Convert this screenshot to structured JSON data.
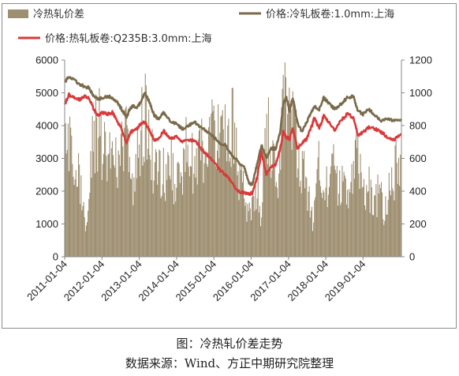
{
  "chart_data": {
    "type": "bar+line",
    "caption": "图：冷热轧价差走势",
    "source": "数据来源：Wind、方正中期研究院整理",
    "legend": {
      "placement": "top",
      "items": [
        {
          "label": "冷热轧价差",
          "kind": "area",
          "color": "#9e8f70"
        },
        {
          "label": "价格:冷轧板卷:1.0mm:上海",
          "kind": "line",
          "color": "#7a6a4a"
        },
        {
          "label": "价格:热轧板卷:Q235B:3.0mm:上海",
          "kind": "line",
          "color": "#d93a3a"
        }
      ]
    },
    "y_left": {
      "min": 0,
      "max": 6000,
      "ticks": [
        "0",
        "1000",
        "2000",
        "3000",
        "4000",
        "5000",
        "6000"
      ]
    },
    "y_right": {
      "min": 0,
      "max": 1200,
      "ticks": [
        "0",
        "200",
        "400",
        "600",
        "800",
        "1000",
        "1200"
      ]
    },
    "x": {
      "min": "2011-01-04",
      "max": "2020-01-15",
      "ticks": [
        "2011-01-04",
        "2012-01-04",
        "2013-01-04",
        "2014-01-04",
        "2015-01-04",
        "2016-01-04",
        "2017-01-04",
        "2018-01-04",
        "2019-01-04"
      ]
    },
    "grid": false,
    "series": [
      {
        "name": "价格:冷轧板卷:1.0mm:上海",
        "axis": "left",
        "points": [
          [
            "2011-01-04",
            5300
          ],
          [
            "2011-02-15",
            5500
          ],
          [
            "2011-04-01",
            5400
          ],
          [
            "2011-06-01",
            5250
          ],
          [
            "2011-07-15",
            5200
          ],
          [
            "2011-09-01",
            5150
          ],
          [
            "2011-10-15",
            4900
          ],
          [
            "2011-12-01",
            4800
          ],
          [
            "2012-01-04",
            4850
          ],
          [
            "2012-03-01",
            4900
          ],
          [
            "2012-04-15",
            4850
          ],
          [
            "2012-06-01",
            4700
          ],
          [
            "2012-07-15",
            4500
          ],
          [
            "2012-09-01",
            4250
          ],
          [
            "2012-10-01",
            4500
          ],
          [
            "2012-11-01",
            4600
          ],
          [
            "2012-12-15",
            4550
          ],
          [
            "2013-01-15",
            4700
          ],
          [
            "2013-03-01",
            5000
          ],
          [
            "2013-04-15",
            4700
          ],
          [
            "2013-06-01",
            4300
          ],
          [
            "2013-07-15",
            4200
          ],
          [
            "2013-09-01",
            4400
          ],
          [
            "2013-11-01",
            4150
          ],
          [
            "2014-01-04",
            4050
          ],
          [
            "2014-03-01",
            3900
          ],
          [
            "2014-05-01",
            4000
          ],
          [
            "2014-07-01",
            4100
          ],
          [
            "2014-09-01",
            3950
          ],
          [
            "2014-11-01",
            3800
          ],
          [
            "2015-01-04",
            3650
          ],
          [
            "2015-03-01",
            3450
          ],
          [
            "2015-05-01",
            3400
          ],
          [
            "2015-07-01",
            3100
          ],
          [
            "2015-09-01",
            2900
          ],
          [
            "2015-11-01",
            2700
          ],
          [
            "2015-12-15",
            2250
          ],
          [
            "2016-01-15",
            2200
          ],
          [
            "2016-03-01",
            2800
          ],
          [
            "2016-04-15",
            3400
          ],
          [
            "2016-06-01",
            3000
          ],
          [
            "2016-07-15",
            3300
          ],
          [
            "2016-09-01",
            3300
          ],
          [
            "2016-10-15",
            3800
          ],
          [
            "2016-11-15",
            4700
          ],
          [
            "2016-12-15",
            4850
          ],
          [
            "2017-01-15",
            4450
          ],
          [
            "2017-02-15",
            4850
          ],
          [
            "2017-04-01",
            4100
          ],
          [
            "2017-05-15",
            3800
          ],
          [
            "2017-07-01",
            4100
          ],
          [
            "2017-08-15",
            4400
          ],
          [
            "2017-09-15",
            4600
          ],
          [
            "2017-11-01",
            4500
          ],
          [
            "2017-12-15",
            4850
          ],
          [
            "2018-02-01",
            4700
          ],
          [
            "2018-04-01",
            4500
          ],
          [
            "2018-06-01",
            4650
          ],
          [
            "2018-08-01",
            4850
          ],
          [
            "2018-10-01",
            4900
          ],
          [
            "2018-11-15",
            4450
          ],
          [
            "2019-01-04",
            4350
          ],
          [
            "2019-03-01",
            4500
          ],
          [
            "2019-05-01",
            4300
          ],
          [
            "2019-07-01",
            4150
          ],
          [
            "2019-09-01",
            4200
          ],
          [
            "2019-11-01",
            4150
          ],
          [
            "2020-01-15",
            4200
          ]
        ]
      },
      {
        "name": "价格:热轧板卷:Q235B:3.0mm:上海",
        "axis": "left",
        "points": [
          [
            "2011-01-04",
            4650
          ],
          [
            "2011-02-15",
            4950
          ],
          [
            "2011-04-01",
            4850
          ],
          [
            "2011-06-01",
            4800
          ],
          [
            "2011-07-15",
            4900
          ],
          [
            "2011-09-01",
            4850
          ],
          [
            "2011-10-15",
            4500
          ],
          [
            "2011-12-01",
            4300
          ],
          [
            "2012-01-04",
            4400
          ],
          [
            "2012-03-01",
            4350
          ],
          [
            "2012-04-15",
            4400
          ],
          [
            "2012-06-01",
            4150
          ],
          [
            "2012-07-15",
            3900
          ],
          [
            "2012-09-01",
            3450
          ],
          [
            "2012-10-01",
            3750
          ],
          [
            "2012-11-01",
            3850
          ],
          [
            "2012-12-15",
            3900
          ],
          [
            "2013-01-15",
            4050
          ],
          [
            "2013-03-01",
            4100
          ],
          [
            "2013-04-15",
            3850
          ],
          [
            "2013-06-01",
            3550
          ],
          [
            "2013-07-15",
            3600
          ],
          [
            "2013-09-01",
            3850
          ],
          [
            "2013-11-01",
            3600
          ],
          [
            "2014-01-04",
            3650
          ],
          [
            "2014-03-01",
            3500
          ],
          [
            "2014-05-01",
            3550
          ],
          [
            "2014-07-01",
            3550
          ],
          [
            "2014-09-01",
            3300
          ],
          [
            "2014-11-01",
            3100
          ],
          [
            "2015-01-04",
            2900
          ],
          [
            "2015-03-01",
            2650
          ],
          [
            "2015-05-01",
            2500
          ],
          [
            "2015-07-01",
            2250
          ],
          [
            "2015-09-01",
            2000
          ],
          [
            "2015-11-01",
            1950
          ],
          [
            "2015-12-15",
            1900
          ],
          [
            "2016-01-15",
            1950
          ],
          [
            "2016-03-01",
            2400
          ],
          [
            "2016-04-15",
            3200
          ],
          [
            "2016-06-01",
            2500
          ],
          [
            "2016-07-15",
            2750
          ],
          [
            "2016-09-01",
            2800
          ],
          [
            "2016-10-15",
            3300
          ],
          [
            "2016-11-15",
            3800
          ],
          [
            "2016-12-15",
            3650
          ],
          [
            "2017-01-15",
            3600
          ],
          [
            "2017-02-15",
            3900
          ],
          [
            "2017-04-01",
            3300
          ],
          [
            "2017-05-15",
            3450
          ],
          [
            "2017-07-01",
            3600
          ],
          [
            "2017-08-15",
            3950
          ],
          [
            "2017-09-15",
            4250
          ],
          [
            "2017-11-01",
            3900
          ],
          [
            "2017-12-15",
            4300
          ],
          [
            "2018-02-01",
            4100
          ],
          [
            "2018-04-01",
            3850
          ],
          [
            "2018-06-01",
            4150
          ],
          [
            "2018-08-01",
            4350
          ],
          [
            "2018-10-01",
            4250
          ],
          [
            "2018-11-15",
            3700
          ],
          [
            "2019-01-04",
            3800
          ],
          [
            "2019-03-01",
            3950
          ],
          [
            "2019-05-01",
            3900
          ],
          [
            "2019-07-01",
            3800
          ],
          [
            "2019-09-01",
            3650
          ],
          [
            "2019-11-01",
            3550
          ],
          [
            "2020-01-15",
            3750
          ]
        ]
      },
      {
        "name": "冷热轧价差",
        "axis": "right",
        "kind": "area",
        "points": [
          [
            "2011-01-04",
            700
          ],
          [
            "2011-02-01",
            880
          ],
          [
            "2011-03-01",
            720
          ],
          [
            "2011-04-01",
            420
          ],
          [
            "2011-05-01",
            620
          ],
          [
            "2011-06-01",
            500
          ],
          [
            "2011-07-01",
            300
          ],
          [
            "2011-08-01",
            240
          ],
          [
            "2011-09-01",
            600
          ],
          [
            "2011-10-01",
            850
          ],
          [
            "2011-11-01",
            900
          ],
          [
            "2011-12-01",
            920
          ],
          [
            "2012-01-01",
            760
          ],
          [
            "2012-02-01",
            760
          ],
          [
            "2012-03-01",
            860
          ],
          [
            "2012-04-01",
            820
          ],
          [
            "2012-05-01",
            760
          ],
          [
            "2012-06-01",
            620
          ],
          [
            "2012-07-01",
            780
          ],
          [
            "2012-08-01",
            900
          ],
          [
            "2012-09-01",
            920
          ],
          [
            "2012-10-01",
            760
          ],
          [
            "2012-11-01",
            560
          ],
          [
            "2012-12-01",
            600
          ],
          [
            "2013-01-01",
            820
          ],
          [
            "2013-02-01",
            960
          ],
          [
            "2013-03-01",
            1060
          ],
          [
            "2013-04-01",
            820
          ],
          [
            "2013-05-01",
            720
          ],
          [
            "2013-06-01",
            620
          ],
          [
            "2013-07-01",
            720
          ],
          [
            "2013-08-01",
            640
          ],
          [
            "2013-09-01",
            560
          ],
          [
            "2013-10-01",
            660
          ],
          [
            "2013-11-01",
            680
          ],
          [
            "2013-12-01",
            560
          ],
          [
            "2014-01-01",
            560
          ],
          [
            "2014-02-01",
            520
          ],
          [
            "2014-03-01",
            640
          ],
          [
            "2014-04-01",
            820
          ],
          [
            "2014-05-01",
            740
          ],
          [
            "2014-06-01",
            660
          ],
          [
            "2014-07-01",
            680
          ],
          [
            "2014-08-01",
            720
          ],
          [
            "2014-09-01",
            900
          ],
          [
            "2014-10-01",
            700
          ],
          [
            "2014-11-01",
            680
          ],
          [
            "2014-12-01",
            880
          ],
          [
            "2015-01-01",
            820
          ],
          [
            "2015-02-01",
            880
          ],
          [
            "2015-03-01",
            860
          ],
          [
            "2015-04-01",
            800
          ],
          [
            "2015-05-01",
            880
          ],
          [
            "2015-06-01",
            880
          ],
          [
            "2015-07-01",
            960
          ],
          [
            "2015-08-01",
            760
          ],
          [
            "2015-09-01",
            600
          ],
          [
            "2015-10-01",
            480
          ],
          [
            "2015-11-01",
            500
          ],
          [
            "2015-12-01",
            300
          ],
          [
            "2016-01-01",
            380
          ],
          [
            "2016-02-01",
            360
          ],
          [
            "2016-03-01",
            500
          ],
          [
            "2016-04-01",
            240
          ],
          [
            "2016-05-01",
            700
          ],
          [
            "2016-06-01",
            1010
          ],
          [
            "2016-07-01",
            720
          ],
          [
            "2016-08-01",
            720
          ],
          [
            "2016-09-01",
            580
          ],
          [
            "2016-10-01",
            560
          ],
          [
            "2016-11-01",
            1040
          ],
          [
            "2016-12-01",
            1120
          ],
          [
            "2017-01-01",
            1000
          ],
          [
            "2017-02-01",
            940
          ],
          [
            "2017-03-01",
            880
          ],
          [
            "2017-04-01",
            700
          ],
          [
            "2017-05-01",
            520
          ],
          [
            "2017-06-01",
            640
          ],
          [
            "2017-07-01",
            500
          ],
          [
            "2017-08-01",
            340
          ],
          [
            "2017-09-01",
            260
          ],
          [
            "2017-10-01",
            560
          ],
          [
            "2017-11-01",
            660
          ],
          [
            "2017-12-01",
            420
          ],
          [
            "2018-01-01",
            480
          ],
          [
            "2018-02-01",
            560
          ],
          [
            "2018-03-01",
            620
          ],
          [
            "2018-04-01",
            580
          ],
          [
            "2018-05-01",
            480
          ],
          [
            "2018-06-01",
            560
          ],
          [
            "2018-07-01",
            520
          ],
          [
            "2018-08-01",
            480
          ],
          [
            "2018-09-01",
            480
          ],
          [
            "2018-10-01",
            560
          ],
          [
            "2018-11-01",
            700
          ],
          [
            "2018-12-01",
            660
          ],
          [
            "2019-01-01",
            520
          ],
          [
            "2019-02-01",
            440
          ],
          [
            "2019-03-01",
            500
          ],
          [
            "2019-04-01",
            420
          ],
          [
            "2019-05-01",
            420
          ],
          [
            "2019-06-01",
            460
          ],
          [
            "2019-07-01",
            400
          ],
          [
            "2019-08-01",
            320
          ],
          [
            "2019-09-01",
            480
          ],
          [
            "2019-10-01",
            520
          ],
          [
            "2019-11-01",
            600
          ],
          [
            "2019-12-01",
            680
          ],
          [
            "2020-01-15",
            560
          ]
        ]
      }
    ]
  }
}
